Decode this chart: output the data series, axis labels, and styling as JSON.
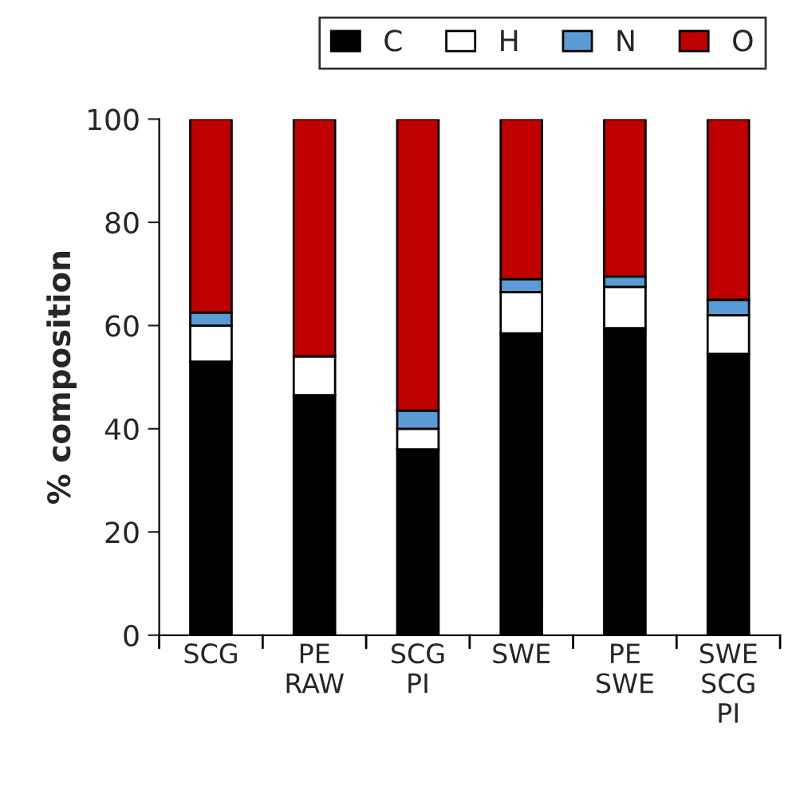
{
  "chart_data": {
    "type": "bar",
    "stacked": true,
    "ylabel": "% composition",
    "categories": [
      "SCG",
      "PE\nRAW",
      "SCG\nPI",
      "SWE",
      "PE\nSWE",
      "SWE\nSCG\nPI"
    ],
    "series": [
      {
        "name": "C",
        "color": "#000000",
        "values": [
          53,
          46.5,
          36,
          58.5,
          59.5,
          54.5
        ]
      },
      {
        "name": "H",
        "color": "#ffffff",
        "values": [
          7,
          7.5,
          4,
          8,
          8,
          7.5
        ]
      },
      {
        "name": "N",
        "color": "#5b9bd5",
        "values": [
          2.5,
          null,
          3.5,
          2.5,
          2,
          3
        ]
      },
      {
        "name": "O",
        "color": "#c00000",
        "values": [
          37.5,
          46,
          56.5,
          31,
          30.5,
          35
        ]
      }
    ],
    "ylim": [
      0,
      100
    ],
    "yticks": [
      0,
      20,
      40,
      60,
      80,
      100
    ],
    "grid": false,
    "legend": "top right"
  }
}
